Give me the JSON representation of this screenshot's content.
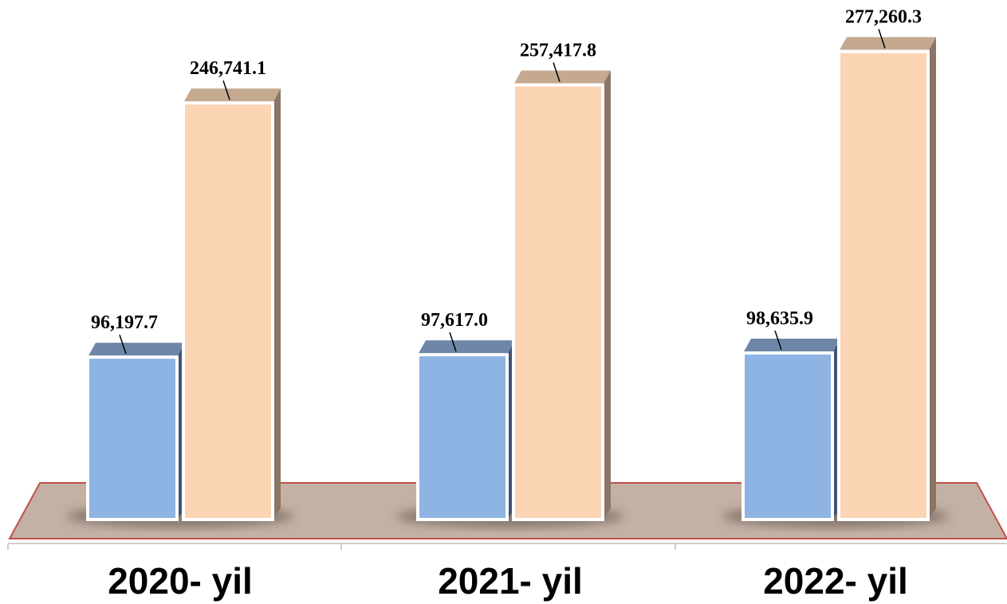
{
  "chart_data": {
    "type": "bar",
    "categories": [
      "2020- yil",
      "2021- yil",
      "2022- yil"
    ],
    "series": [
      {
        "values": [
          96197.7,
          97617.0,
          98635.9
        ],
        "labels": [
          "96,197.7",
          "97,617.0",
          "98,635.9"
        ]
      },
      {
        "values": [
          246741.1,
          257417.8,
          277260.3
        ],
        "labels": [
          "246,741.1",
          "257,417.8",
          "277,260.3"
        ]
      }
    ],
    "title": "",
    "xlabel": "",
    "ylabel": "",
    "grid": false,
    "legend": "none"
  },
  "colors": {
    "series_front": [
      "#8eb4e3",
      "#fcd5b5"
    ],
    "series_top": [
      "#6e87a9",
      "#c4a890"
    ],
    "series_side": [
      "#3f5572",
      "#8a7566"
    ],
    "floor": "#c2b1a4",
    "floor_edge": "#c0504d",
    "bar_outline": "#ffffff",
    "axis": "#bfbfbf"
  }
}
